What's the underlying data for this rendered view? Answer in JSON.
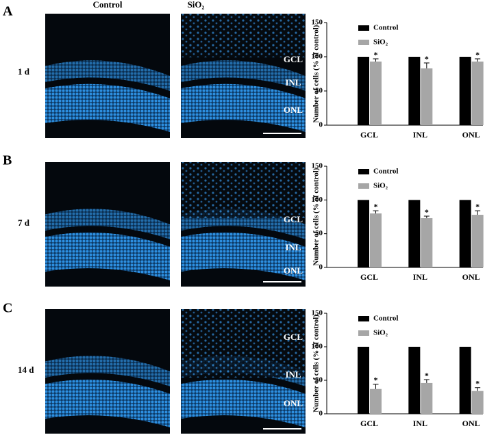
{
  "headers": {
    "control": "Control",
    "treated": "SiO₂"
  },
  "panels": [
    {
      "letter": "A",
      "time": "1 d",
      "image_labels": [
        "GCL",
        "INL",
        "ONL"
      ]
    },
    {
      "letter": "B",
      "time": "7 d",
      "image_labels": [
        "GCL",
        "INL",
        "ONL"
      ]
    },
    {
      "letter": "C",
      "time": "14 d",
      "image_labels": [
        "GCL",
        "INL",
        "ONL"
      ]
    }
  ],
  "chart_data": [
    {
      "type": "bar",
      "y_label": "Number of cells (% of control)",
      "categories": [
        "GCL",
        "INL",
        "ONL"
      ],
      "ylim": [
        0,
        150
      ],
      "yticks": [
        0,
        50,
        100,
        150
      ],
      "legend": "upper-left",
      "series": [
        {
          "name": "Control",
          "color": "#000000",
          "values": [
            100,
            100,
            100
          ]
        },
        {
          "name": "SiO₂",
          "color": "#a6a6a6",
          "values": [
            93,
            83,
            93
          ],
          "errors": [
            4,
            8,
            4
          ],
          "significance": [
            "*",
            "*",
            "*"
          ]
        }
      ]
    },
    {
      "type": "bar",
      "y_label": "Number of cells (% of control)",
      "categories": [
        "GCL",
        "INL",
        "ONL"
      ],
      "ylim": [
        0,
        150
      ],
      "yticks": [
        0,
        50,
        100,
        150
      ],
      "legend": "upper-left",
      "series": [
        {
          "name": "Control",
          "color": "#000000",
          "values": [
            100,
            100,
            100
          ]
        },
        {
          "name": "SiO₂",
          "color": "#a6a6a6",
          "values": [
            80,
            73,
            78
          ],
          "errors": [
            4,
            3,
            6
          ],
          "significance": [
            "*",
            "*",
            "*"
          ]
        }
      ]
    },
    {
      "type": "bar",
      "y_label": "Number of cells (% of control)",
      "categories": [
        "GCL",
        "INL",
        "ONL"
      ],
      "ylim": [
        0,
        150
      ],
      "yticks": [
        0,
        50,
        100,
        150
      ],
      "legend": "upper-left",
      "series": [
        {
          "name": "Control",
          "color": "#000000",
          "values": [
            100,
            100,
            100
          ]
        },
        {
          "name": "SiO₂",
          "color": "#a6a6a6",
          "values": [
            37,
            46,
            34
          ],
          "errors": [
            7,
            5,
            5
          ],
          "significance": [
            "*",
            "*",
            "*"
          ]
        }
      ]
    }
  ]
}
